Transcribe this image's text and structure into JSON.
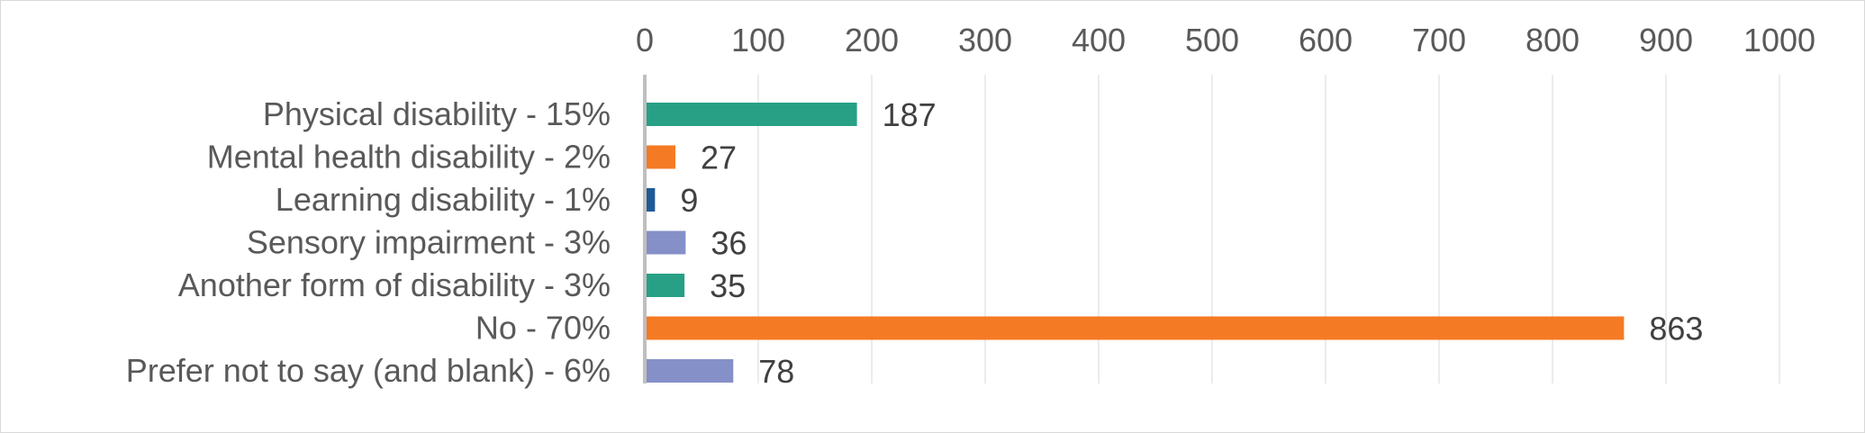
{
  "chart_data": {
    "type": "bar",
    "orientation": "horizontal",
    "title": "",
    "xlabel": "",
    "ylabel": "",
    "categories": [
      "Physical disability - 15%",
      "Mental health disability - 2%",
      "Learning disability - 1%",
      "Sensory impairment - 3%",
      "Another form of disability - 3%",
      "No - 70%",
      "Prefer not to say (and blank) - 6%"
    ],
    "values": [
      187,
      27,
      9,
      36,
      35,
      863,
      78
    ],
    "data_labels": [
      "187",
      "27",
      "9",
      "36",
      "35",
      "863",
      "78"
    ],
    "colors": [
      "#27a085",
      "#f47a24",
      "#1f5a96",
      "#8590c8",
      "#27a085",
      "#f47a24",
      "#8590c8"
    ],
    "xlim": [
      0,
      1000
    ],
    "x_ticks": [
      0,
      100,
      200,
      300,
      400,
      500,
      600,
      700,
      800,
      900,
      1000
    ],
    "x_tick_labels": [
      "0",
      "100",
      "200",
      "300",
      "400",
      "500",
      "600",
      "700",
      "800",
      "900",
      "1000"
    ],
    "x_axis_position": "top",
    "grid": true,
    "legend": false,
    "axis_color": "#bfbfbf",
    "grid_color": "#e6e6e6"
  }
}
